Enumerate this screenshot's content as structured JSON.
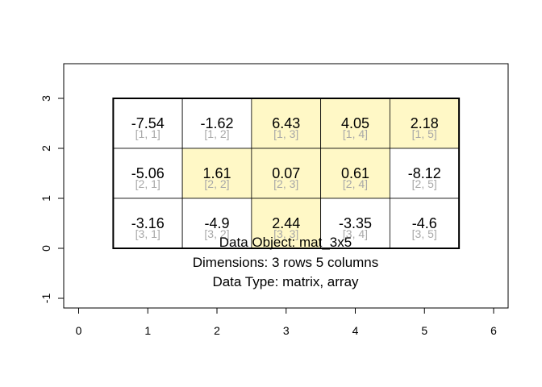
{
  "chart_data": {
    "type": "table",
    "title": "",
    "xlabel": "",
    "ylabel": "",
    "xlim": [
      -0.2,
      6.2
    ],
    "ylim": [
      -1.2,
      3.7
    ],
    "x_ticks": [
      "0",
      "1",
      "2",
      "3",
      "4",
      "5",
      "6"
    ],
    "y_ticks": [
      "-1",
      "0",
      "1",
      "2",
      "3"
    ],
    "matrix": {
      "rows": 3,
      "cols": 5,
      "values": [
        [
          "-7.54",
          "-1.62",
          "6.43",
          "4.05",
          "2.18"
        ],
        [
          "-5.06",
          "1.61",
          "0.07",
          "0.61",
          "-8.12"
        ],
        [
          "-3.16",
          "-4.9",
          "2.44",
          "-3.35",
          "-4.6"
        ]
      ],
      "indices": [
        [
          "[1, 1]",
          "[1, 2]",
          "[1, 3]",
          "[1, 4]",
          "[1, 5]"
        ],
        [
          "[2, 1]",
          "[2, 2]",
          "[2, 3]",
          "[2, 4]",
          "[2, 5]"
        ],
        [
          "[3, 1]",
          "[3, 2]",
          "[3, 3]",
          "[3, 4]",
          "[3, 5]"
        ]
      ],
      "highlighted": [
        [
          false,
          false,
          true,
          true,
          true
        ],
        [
          false,
          true,
          true,
          true,
          false
        ],
        [
          false,
          false,
          true,
          false,
          false
        ]
      ]
    },
    "info_lines": [
      "Data Object: mat_3x5",
      "Dimensions: 3 rows 5 columns",
      "Data Type: matrix, array"
    ],
    "colors": {
      "highlight": "#fff8c6",
      "cell_border": "#000000",
      "index_text": "#a8a8a8",
      "frame": "#000000"
    },
    "grid": false,
    "legend": "none"
  }
}
